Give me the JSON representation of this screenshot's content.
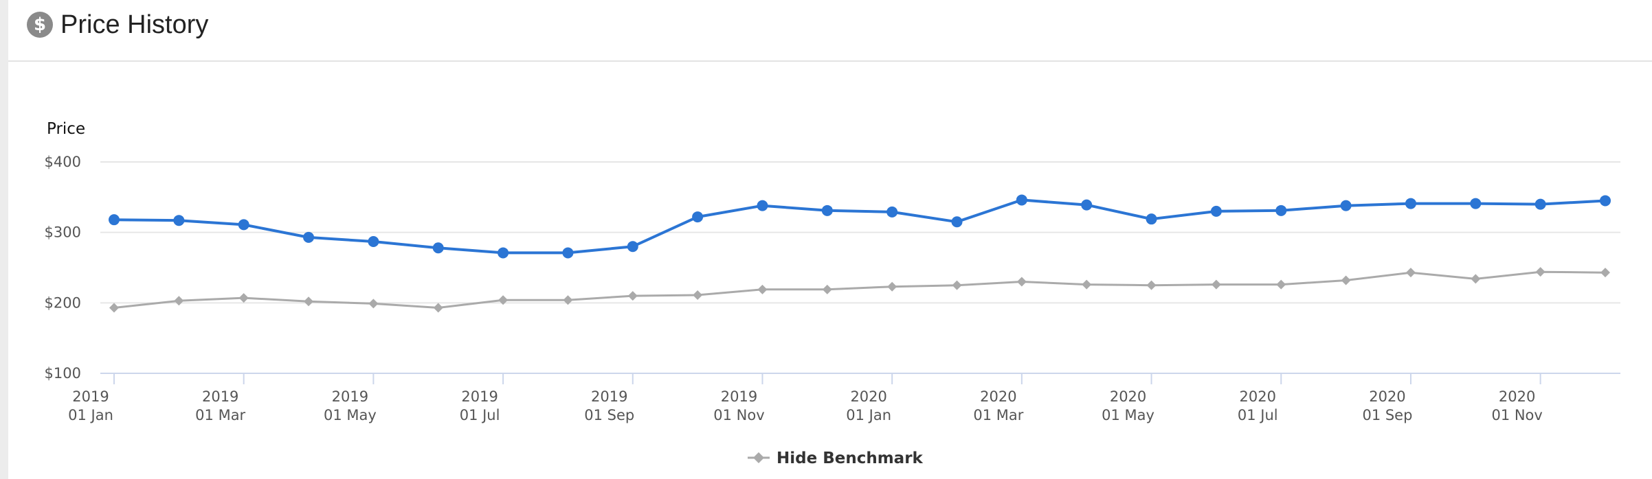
{
  "header": {
    "title": "Price History",
    "icon": "dollar-circle-icon"
  },
  "legend": {
    "label": "Hide Benchmark"
  },
  "colors": {
    "price": "#2b75d4",
    "benchmark": "#aaaaaa",
    "grid": "#e6e6e6",
    "axis": "#ccd6eb",
    "icon": "#8a8a8a"
  },
  "chart_data": {
    "type": "line",
    "title": "",
    "ylabel": "Price",
    "xlabel": "",
    "ylim": [
      100,
      400
    ],
    "yticks": [
      "$400",
      "$300",
      "$200",
      "$100"
    ],
    "ytick_values": [
      400,
      300,
      200,
      100
    ],
    "x": [
      "2019-01",
      "2019-02",
      "2019-03",
      "2019-04",
      "2019-05",
      "2019-06",
      "2019-07",
      "2019-08",
      "2019-09",
      "2019-10",
      "2019-11",
      "2019-12",
      "2020-01",
      "2020-02",
      "2020-03",
      "2020-04",
      "2020-05",
      "2020-06",
      "2020-07",
      "2020-08",
      "2020-09",
      "2020-10",
      "2020-11",
      "2020-12"
    ],
    "xticks": [
      {
        "year": "2019",
        "label": "01 Jan",
        "x": "2019-01"
      },
      {
        "year": "2019",
        "label": "01 Mar",
        "x": "2019-03"
      },
      {
        "year": "2019",
        "label": "01 May",
        "x": "2019-05"
      },
      {
        "year": "2019",
        "label": "01 Jul",
        "x": "2019-07"
      },
      {
        "year": "2019",
        "label": "01 Sep",
        "x": "2019-09"
      },
      {
        "year": "2019",
        "label": "01 Nov",
        "x": "2019-11"
      },
      {
        "year": "2020",
        "label": "01 Jan",
        "x": "2020-01"
      },
      {
        "year": "2020",
        "label": "01 Mar",
        "x": "2020-03"
      },
      {
        "year": "2020",
        "label": "01 May",
        "x": "2020-05"
      },
      {
        "year": "2020",
        "label": "01 Jul",
        "x": "2020-07"
      },
      {
        "year": "2020",
        "label": "01 Sep",
        "x": "2020-09"
      },
      {
        "year": "2020",
        "label": "01 Nov",
        "x": "2020-11"
      }
    ],
    "series": [
      {
        "key": "price",
        "values": [
          318,
          317,
          311,
          293,
          287,
          278,
          271,
          271,
          280,
          322,
          338,
          331,
          329,
          315,
          346,
          339,
          319,
          330,
          331,
          338,
          341,
          341,
          340,
          345
        ]
      },
      {
        "key": "benchmark",
        "name": "Hide Benchmark",
        "values": [
          193,
          203,
          207,
          202,
          199,
          193,
          204,
          204,
          210,
          211,
          219,
          219,
          223,
          225,
          230,
          226,
          225,
          226,
          226,
          232,
          243,
          234,
          244,
          243
        ]
      }
    ],
    "grid": true,
    "legend_position": "bottom-center"
  }
}
